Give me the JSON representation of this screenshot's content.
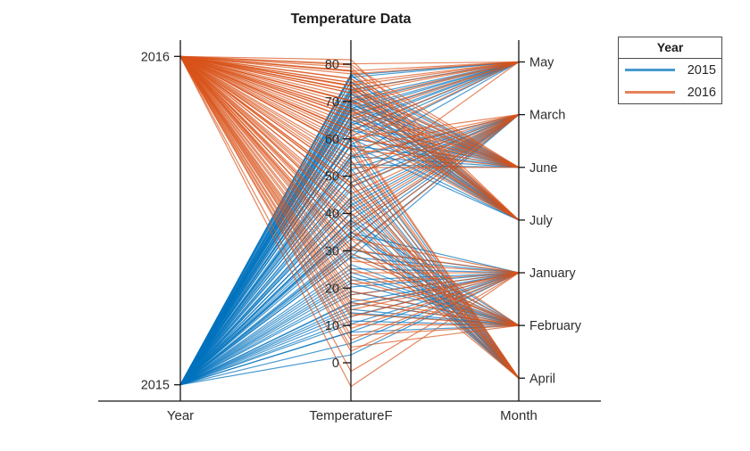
{
  "title": "Temperature Data",
  "legend": {
    "title": "Year",
    "entries": [
      {
        "label": "2015"
      },
      {
        "label": "2016"
      }
    ]
  },
  "chart_data": {
    "type": "parallel-coordinates",
    "title": "Temperature Data",
    "coordinates": [
      "Year",
      "TemperatureF",
      "Month"
    ],
    "group_variable": "Year",
    "year_ticks": [
      2016,
      2015
    ],
    "temp_ticks": [
      0,
      10,
      20,
      30,
      40,
      50,
      60,
      70,
      80
    ],
    "temp_axis_range": [
      -10,
      87
    ],
    "month_order": [
      "May",
      "March",
      "June",
      "July",
      "January",
      "February",
      "April"
    ],
    "legend_position": "top-right",
    "grid": false,
    "series": [
      {
        "year": "2015",
        "color": "#0072BD",
        "months": {
          "May": [
            58.4,
            62.1,
            66.0,
            69.8,
            73.2,
            76.5,
            68.1,
            64.3,
            60.7,
            55.2,
            70.9,
            67.4,
            63.6,
            77.1
          ],
          "March": [
            28.3,
            33.1,
            38.4,
            42.2,
            47.0,
            51.6,
            36.2,
            44.1,
            30.5,
            54.8,
            40.3,
            48.2,
            34.7,
            50.1
          ],
          "June": [
            55.3,
            60.1,
            64.4,
            68.2,
            71.9,
            75.3,
            58.2,
            66.1,
            70.4,
            62.3,
            76.8,
            53.1,
            69.2,
            73.4
          ],
          "July": [
            60.2,
            65.3,
            69.9,
            74.1,
            77.3,
            67.8,
            72.2,
            63.4,
            75.4,
            58.3,
            70.8,
            66.2,
            68.9,
            72.8
          ],
          "January": [
            5.2,
            10.4,
            15.1,
            20.3,
            25.2,
            30.1,
            8.3,
            18.2,
            12.4,
            28.3,
            22.1,
            34.8,
            16.3,
            2.1
          ],
          "February": [
            8.2,
            14.3,
            19.1,
            24.2,
            29.3,
            34.1,
            11.2,
            21.3,
            16.1,
            31.2,
            26.3,
            38.2,
            13.4,
            23.1
          ],
          "April": [
            35.2,
            40.1,
            44.3,
            48.2,
            52.1,
            56.3,
            38.1,
            46.2,
            42.3,
            54.1,
            50.2,
            59.8,
            37.3,
            43.2
          ]
        }
      },
      {
        "year": "2016",
        "color": "#D95319",
        "months": {
          "May": [
            48.2,
            72.3,
            75.1,
            78.2,
            80.1,
            65.3,
            69.2,
            74.3,
            59.1,
            70.2,
            77.4,
            62.3,
            73.1,
            66.4
          ],
          "March": [
            30.2,
            36.1,
            41.3,
            45.2,
            50.1,
            57.3,
            33.1,
            47.2,
            39.3,
            53.1,
            43.2,
            60.2,
            37.1,
            55.3
          ],
          "June": [
            57.2,
            63.1,
            67.3,
            71.2,
            76.1,
            79.8,
            60.3,
            73.2,
            65.1,
            78.3,
            68.2,
            74.1,
            52.3,
            70.1
          ],
          "July": [
            62.3,
            68.1,
            73.2,
            78.1,
            81.2,
            66.3,
            75.1,
            70.3,
            79.2,
            64.1,
            72.3,
            76.2,
            67.1,
            74.3
          ],
          "January": [
            -2.3,
            6.1,
            12.3,
            18.2,
            24.1,
            30.3,
            9.2,
            15.3,
            21.1,
            27.2,
            3.1,
            33.2,
            -6.4,
            14.2
          ],
          "February": [
            4.2,
            10.3,
            16.1,
            22.3,
            28.2,
            35.1,
            7.3,
            19.2,
            13.1,
            31.3,
            25.2,
            40.1,
            17.2,
            29.3
          ],
          "April": [
            33.2,
            39.1,
            45.3,
            51.2,
            57.1,
            61.3,
            36.2,
            48.1,
            42.2,
            58.2,
            54.3,
            62.1,
            47.3,
            50.2
          ]
        }
      }
    ]
  }
}
